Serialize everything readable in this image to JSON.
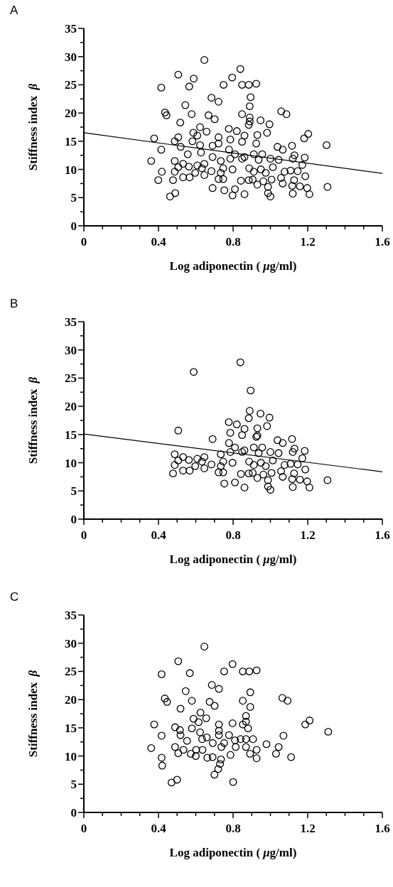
{
  "chart_data": [
    {
      "type": "scatter",
      "title": "A",
      "xlabel": "Log adiponectin (μg/ml)",
      "ylabel": "Stiffness index β",
      "xlim": [
        0,
        1.6
      ],
      "ylim": [
        0,
        35
      ],
      "xticks": [
        0,
        {
          "value": 0.1,
          "label": null
        },
        {
          "value": 0.2,
          "label": null
        },
        {
          "value": 0.3,
          "label": null
        },
        0.4,
        {
          "value": 0.5,
          "label": null
        },
        {
          "value": 0.6,
          "label": null
        },
        {
          "value": 0.7,
          "label": null
        },
        0.8,
        {
          "value": 0.9,
          "label": null
        },
        {
          "value": 1.0,
          "label": null
        },
        {
          "value": 1.1,
          "label": null
        },
        1.2,
        {
          "value": 1.3,
          "label": null
        },
        {
          "value": 1.4,
          "label": null
        },
        {
          "value": 1.5,
          "label": null
        },
        1.6
      ],
      "yticks": [
        0,
        {
          "value": 2.5,
          "label": null
        },
        5,
        {
          "value": 7.5,
          "label": null
        },
        10,
        {
          "value": 12.5,
          "label": null
        },
        15,
        {
          "value": 17.5,
          "label": null
        },
        20,
        {
          "value": 22.5,
          "label": null
        },
        25,
        {
          "value": 27.5,
          "label": null
        },
        30,
        {
          "value": 32.5,
          "label": null
        },
        35
      ],
      "series": [
        {
          "marker": "circle",
          "color": "#000000",
          "x": [
            0.646,
            0.839,
            0.506,
            0.589,
            0.795,
            0.749,
            0.848,
            0.884,
            0.924,
            0.415,
            0.565,
            0.684,
            0.722,
            0.894,
            0.889,
            0.544,
            0.435,
            0.443,
            0.578,
            0.668,
            0.701,
            0.848,
            0.889,
            0.889,
            0.947,
            0.995,
            1.058,
            1.086,
            0.517,
            0.623,
            0.587,
            0.658,
            0.777,
            0.82,
            0.884,
            0.377,
            0.506,
            0.487,
            0.582,
            0.608,
            0.722,
            0.785,
            0.861,
            0.93,
            0.982,
            1.203,
            1.181,
            1.301,
            0.415,
            0.519,
            0.623,
            0.69,
            0.722,
            0.778,
            0.924,
            0.848,
            1.038,
            1.066,
            1.116,
            0.557,
            0.628,
            0.69,
            0.81,
            0.861,
            0.911,
            0.956,
            1.129,
            1.184,
            0.361,
            0.487,
            0.532,
            0.563,
            0.608,
            0.646,
            0.734,
            0.785,
            0.848,
            0.937,
            1.0,
            1.044,
            1.12,
            1.171,
            0.506,
            0.633,
            0.684,
            0.747,
            0.797,
            0.886,
            0.949,
            1.013,
            0.418,
            0.487,
            0.597,
            0.734,
            0.911,
            0.975,
            1.076,
            1.108,
            1.146,
            0.399,
            0.478,
            0.532,
            0.567,
            0.646,
            0.722,
            0.747,
            0.842,
            0.884,
            0.905,
            0.962,
            1.006,
            1.057,
            1.066,
            1.127,
            1.187,
            1.306,
            0.69,
            0.753,
            0.81,
            0.93,
            0.987,
            1.117,
            1.158,
            1.197,
            0.462,
            0.49,
            0.797,
            0.861,
            0.987,
            1.0,
            1.12,
            1.209
          ],
          "values": [
            29.4,
            27.8,
            26.8,
            26.1,
            26.3,
            25.0,
            25.0,
            25.0,
            25.2,
            24.5,
            24.7,
            22.7,
            22.0,
            22.8,
            21.2,
            21.4,
            20.1,
            19.6,
            19.8,
            19.6,
            18.9,
            19.8,
            19.2,
            18.5,
            18.7,
            18.0,
            20.3,
            19.8,
            18.3,
            17.5,
            16.5,
            16.7,
            17.2,
            16.8,
            17.9,
            15.5,
            15.7,
            15.0,
            15.0,
            16.0,
            15.7,
            15.3,
            16.0,
            16.1,
            16.5,
            16.3,
            15.5,
            14.3,
            13.5,
            14.0,
            14.3,
            14.2,
            14.6,
            13.5,
            14.6,
            14.9,
            14.0,
            13.5,
            14.2,
            12.7,
            13.0,
            12.2,
            12.7,
            12.2,
            12.7,
            12.7,
            12.5,
            12.1,
            11.5,
            11.5,
            11.0,
            10.5,
            10.7,
            11.0,
            11.5,
            11.9,
            11.9,
            11.7,
            11.9,
            11.7,
            11.9,
            10.8,
            10.4,
            10.2,
            9.7,
            10.2,
            10.0,
            10.2,
            10.0,
            10.4,
            9.6,
            9.6,
            9.4,
            9.4,
            9.6,
            9.4,
            9.6,
            9.8,
            9.7,
            8.1,
            8.1,
            8.6,
            8.6,
            9.0,
            8.3,
            8.3,
            8.0,
            8.1,
            8.2,
            7.9,
            8.2,
            8.5,
            7.5,
            8.1,
            8.8,
            6.9,
            6.7,
            6.3,
            6.5,
            7.3,
            6.9,
            7.1,
            7.0,
            6.7,
            5.2,
            5.8,
            5.4,
            5.6,
            5.8,
            5.2,
            5.7,
            5.6
          ]
        },
        {
          "type": "line",
          "color": "#000000",
          "x": [
            0,
            1.6
          ],
          "values": [
            16.5,
            9.3
          ]
        }
      ]
    },
    {
      "type": "scatter",
      "title": "B",
      "xlabel": "Log adiponectin (μg/ml)",
      "ylabel": "Stiffness index β",
      "xlim": [
        0,
        1.6
      ],
      "ylim": [
        0,
        35
      ],
      "xticks": [
        0,
        {
          "value": 0.1,
          "label": null
        },
        {
          "value": 0.2,
          "label": null
        },
        {
          "value": 0.3,
          "label": null
        },
        0.4,
        {
          "value": 0.5,
          "label": null
        },
        {
          "value": 0.6,
          "label": null
        },
        {
          "value": 0.7,
          "label": null
        },
        0.8,
        {
          "value": 0.9,
          "label": null
        },
        {
          "value": 1.0,
          "label": null
        },
        {
          "value": 1.1,
          "label": null
        },
        1.2,
        {
          "value": 1.3,
          "label": null
        },
        {
          "value": 1.4,
          "label": null
        },
        {
          "value": 1.5,
          "label": null
        },
        1.6
      ],
      "yticks": [
        0,
        {
          "value": 2.5,
          "label": null
        },
        5,
        {
          "value": 7.5,
          "label": null
        },
        10,
        {
          "value": 12.5,
          "label": null
        },
        15,
        {
          "value": 17.5,
          "label": null
        },
        20,
        {
          "value": 22.5,
          "label": null
        },
        25,
        {
          "value": 27.5,
          "label": null
        },
        30,
        {
          "value": 32.5,
          "label": null
        },
        35
      ],
      "series": [
        {
          "marker": "circle",
          "color": "#000000",
          "x": [
            0.839,
            0.589,
            0.894,
            0.889,
            0.947,
            0.995,
            0.884,
            0.82,
            0.777,
            0.861,
            0.93,
            0.982,
            0.506,
            0.785,
            0.848,
            0.924,
            0.93,
            0.778,
            0.69,
            1.038,
            1.066,
            1.116,
            0.81,
            0.861,
            0.911,
            0.956,
            1.129,
            1.184,
            0.487,
            0.532,
            0.563,
            0.608,
            0.646,
            0.734,
            0.785,
            0.848,
            0.937,
            1.0,
            1.044,
            1.12,
            1.171,
            0.506,
            0.633,
            0.684,
            0.747,
            0.797,
            0.886,
            0.949,
            1.013,
            0.487,
            0.597,
            0.734,
            0.911,
            0.975,
            1.076,
            1.108,
            1.146,
            0.478,
            0.532,
            0.567,
            0.646,
            0.722,
            0.747,
            0.842,
            0.884,
            0.905,
            0.962,
            1.006,
            1.057,
            1.066,
            1.127,
            1.187,
            1.306,
            0.753,
            0.81,
            0.93,
            0.987,
            1.117,
            1.158,
            1.197,
            0.861,
            0.987,
            1.0,
            1.12,
            1.209
          ],
          "values": [
            27.8,
            26.1,
            22.8,
            19.2,
            18.7,
            18.0,
            17.9,
            16.8,
            17.2,
            16.0,
            16.1,
            16.5,
            15.7,
            15.3,
            14.9,
            14.6,
            14.8,
            13.5,
            14.2,
            14.0,
            13.5,
            14.2,
            12.7,
            12.2,
            12.7,
            12.7,
            12.5,
            12.1,
            11.5,
            11.0,
            10.5,
            10.7,
            11.0,
            11.5,
            11.9,
            11.9,
            11.7,
            11.9,
            11.7,
            11.9,
            10.8,
            10.4,
            10.2,
            9.7,
            10.2,
            10.0,
            10.2,
            10.0,
            10.4,
            9.6,
            9.4,
            9.4,
            9.6,
            9.4,
            9.6,
            9.8,
            9.7,
            8.1,
            8.6,
            8.6,
            9.0,
            8.3,
            8.3,
            8.0,
            8.1,
            8.2,
            7.9,
            8.2,
            8.5,
            7.5,
            8.1,
            8.8,
            6.9,
            6.3,
            6.5,
            7.3,
            6.9,
            7.1,
            7.0,
            6.7,
            5.6,
            5.8,
            5.2,
            5.7,
            5.6
          ]
        },
        {
          "type": "line",
          "color": "#000000",
          "x": [
            0,
            1.6
          ],
          "values": [
            15.1,
            8.4
          ]
        }
      ]
    },
    {
      "type": "scatter",
      "title": "C",
      "xlabel": "Log adiponectin (μg/ml)",
      "ylabel": "Stiffness index β",
      "xlim": [
        0,
        1.6
      ],
      "ylim": [
        0,
        35
      ],
      "xticks": [
        0,
        {
          "value": 0.1,
          "label": null
        },
        {
          "value": 0.2,
          "label": null
        },
        {
          "value": 0.3,
          "label": null
        },
        0.4,
        {
          "value": 0.5,
          "label": null
        },
        {
          "value": 0.6,
          "label": null
        },
        {
          "value": 0.7,
          "label": null
        },
        0.8,
        {
          "value": 0.9,
          "label": null
        },
        {
          "value": 1.0,
          "label": null
        },
        {
          "value": 1.1,
          "label": null
        },
        1.2,
        {
          "value": 1.3,
          "label": null
        },
        {
          "value": 1.4,
          "label": null
        },
        {
          "value": 1.5,
          "label": null
        },
        1.6
      ],
      "yticks": [
        0,
        {
          "value": 2.5,
          "label": null
        },
        5,
        {
          "value": 7.5,
          "label": null
        },
        10,
        {
          "value": 12.5,
          "label": null
        },
        15,
        {
          "value": 17.5,
          "label": null
        },
        20,
        {
          "value": 22.5,
          "label": null
        },
        25,
        {
          "value": 27.5,
          "label": null
        },
        30,
        {
          "value": 32.5,
          "label": null
        },
        35
      ],
      "series": [
        {
          "marker": "circle",
          "color": "#000000",
          "x": [
            0.646,
            0.506,
            0.797,
            0.417,
            0.568,
            0.752,
            0.852,
            0.887,
            0.926,
            0.686,
            0.724,
            0.546,
            0.892,
            0.434,
            0.446,
            0.579,
            0.674,
            0.701,
            0.852,
            0.892,
            1.064,
            1.092,
            0.518,
            0.625,
            0.588,
            0.656,
            0.869,
            0.377,
            0.489,
            0.515,
            0.579,
            0.615,
            0.724,
            0.797,
            0.852,
            0.869,
            0.88,
            1.21,
            1.187,
            1.31,
            0.417,
            0.518,
            0.623,
            0.724,
            0.724,
            0.778,
            1.07,
            0.553,
            0.634,
            0.659,
            0.691,
            0.752,
            0.81,
            0.84,
            0.869,
            0.907,
            0.979,
            0.361,
            0.489,
            0.534,
            0.573,
            0.602,
            0.636,
            0.737,
            0.814,
            0.869,
            0.926,
            1.044,
            0.506,
            0.786,
            0.891,
            1.03,
            1.111,
            0.417,
            0.662,
            0.69,
            0.735,
            0.926,
            0.42,
            0.47,
            0.5,
            0.7,
            0.72,
            0.73,
            0.8,
            0.6
          ],
          "values": [
            29.4,
            26.8,
            26.3,
            24.5,
            24.7,
            25.0,
            25.0,
            25.0,
            25.2,
            22.6,
            21.9,
            21.5,
            21.3,
            20.2,
            19.6,
            19.8,
            19.6,
            18.9,
            19.8,
            18.7,
            20.3,
            19.8,
            18.4,
            17.7,
            16.6,
            16.7,
            17.1,
            15.6,
            15.1,
            14.6,
            14.9,
            16.0,
            15.6,
            15.8,
            15.6,
            16.1,
            14.9,
            16.3,
            15.6,
            14.3,
            13.6,
            13.7,
            14.2,
            14.5,
            13.7,
            13.7,
            13.6,
            12.7,
            13.0,
            13.3,
            12.3,
            12.3,
            12.8,
            13.0,
            13.0,
            13.0,
            12.1,
            11.4,
            11.6,
            11.1,
            10.4,
            11.1,
            11.1,
            11.6,
            11.6,
            11.6,
            11.1,
            11.6,
            10.5,
            10.2,
            10.4,
            10.4,
            9.8,
            9.7,
            9.7,
            9.8,
            9.4,
            9.6,
            8.3,
            5.3,
            5.8,
            6.7,
            7.7,
            8.6,
            5.4,
            10.0
          ]
        }
      ]
    }
  ]
}
